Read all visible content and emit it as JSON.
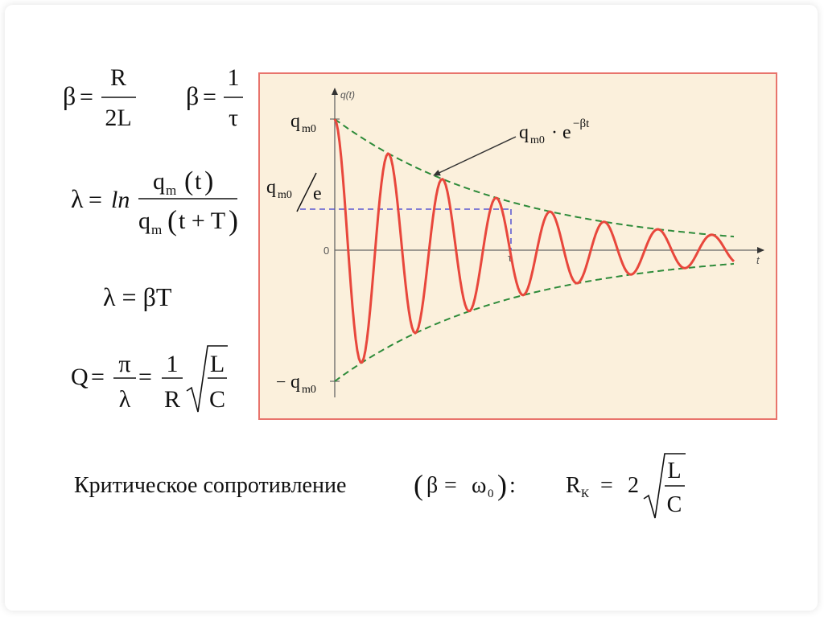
{
  "formulas": {
    "beta_r_over_2l": {
      "lhs": "β",
      "eq": "=",
      "num": "R",
      "den": "2L"
    },
    "beta_one_over_tau": {
      "lhs": "β",
      "eq": "=",
      "num": "1",
      "den": "τ"
    },
    "lambda_ln": {
      "lhs": "λ",
      "eq": "=",
      "fn": "ln",
      "num_q": "q",
      "num_sub": "m",
      "num_arg": "t",
      "den_q": "q",
      "den_sub": "m",
      "den_arg": "t + T"
    },
    "lambda_beta_t": {
      "text": "λ = βT"
    },
    "quality": {
      "lhs": "Q",
      "eq1": "=",
      "frac1_num": "π",
      "frac1_den": "λ",
      "eq2": "=",
      "frac2_num": "1",
      "frac2_den": "R",
      "sqrt_num": "L",
      "sqrt_den": "C"
    }
  },
  "graph": {
    "y_axis_label": "q(t)",
    "x_axis_label": "t",
    "zero_label": "0",
    "tau_label": "τ",
    "qm0_label": "q",
    "qm0_sub": "m0",
    "qm0_over_e_q": "q",
    "qm0_over_e_sub": "m0",
    "qm0_over_e_e": "e",
    "neg_qm0_sign": "−",
    "neg_qm0_q": "q",
    "neg_qm0_sub": "m0",
    "envelope_q": "q",
    "envelope_sub": "m0",
    "envelope_dot": "·",
    "envelope_e": "e",
    "envelope_exp": "−βt",
    "colors": {
      "background": "#fbf0dc",
      "border": "#e8746c",
      "oscillation": "#e8473c",
      "envelope": "#2e8b3a",
      "guide": "#3a3ad0",
      "axis": "#666666"
    }
  },
  "bottom": {
    "critical_text": "Критическое сопротивление",
    "cond_beta": "β",
    "cond_eq": "=",
    "cond_omega": "ω",
    "cond_sub": "0",
    "colon": ":",
    "rk_r": "R",
    "rk_sub": "К",
    "rk_eq": "=",
    "rk_coef": "2",
    "rk_num": "L",
    "rk_den": "C"
  }
}
